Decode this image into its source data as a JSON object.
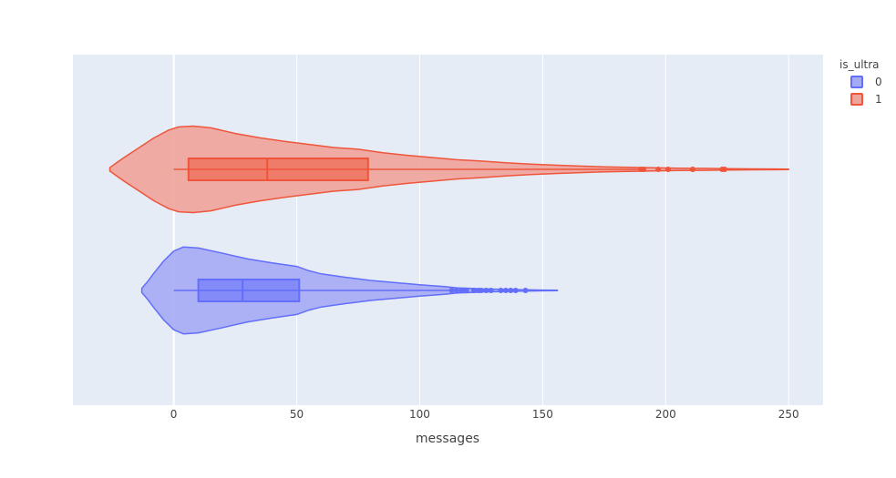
{
  "chart_data": {
    "type": "violin",
    "orientation": "horizontal",
    "xlabel": "messages",
    "xlim": [
      -41,
      264
    ],
    "xticks": [
      0,
      50,
      100,
      150,
      200,
      250
    ],
    "grid": true,
    "legend": {
      "title": "is_ultra",
      "placement": "top-right",
      "entries": [
        "0",
        "1"
      ]
    },
    "series": [
      {
        "name": "0",
        "color": "#636efa",
        "fill": "#a5aaf5",
        "box": {
          "q1": 10,
          "median": 28,
          "q3": 51,
          "whisker_low": 0,
          "whisker_high": 112
        },
        "outliers": [
          113,
          115,
          117,
          119,
          122,
          124,
          125,
          127,
          129,
          133,
          135,
          137,
          139,
          143
        ],
        "density_profile": [
          [
            -13,
            0.05
          ],
          [
            -11,
            0.18
          ],
          [
            -8,
            0.4
          ],
          [
            -4,
            0.68
          ],
          [
            0,
            0.9
          ],
          [
            4,
            0.995
          ],
          [
            10,
            0.97
          ],
          [
            20,
            0.85
          ],
          [
            30,
            0.72
          ],
          [
            40,
            0.63
          ],
          [
            50,
            0.55
          ],
          [
            55,
            0.45
          ],
          [
            60,
            0.38
          ],
          [
            70,
            0.3
          ],
          [
            80,
            0.23
          ],
          [
            90,
            0.18
          ],
          [
            100,
            0.13
          ],
          [
            110,
            0.09
          ],
          [
            115,
            0.06
          ],
          [
            125,
            0.035
          ],
          [
            135,
            0.022
          ],
          [
            145,
            0.012
          ],
          [
            150,
            0.008
          ],
          [
            156,
            0.004
          ]
        ]
      },
      {
        "name": "1",
        "color": "#ef553b",
        "fill": "#f0a39a",
        "box": {
          "q1": 6,
          "median": 38,
          "q3": 79,
          "whisker_low": 0,
          "whisker_high": 189
        },
        "outliers": [
          190,
          191,
          197,
          201,
          211,
          223,
          224
        ],
        "density_profile": [
          [
            -26,
            0.04
          ],
          [
            -24,
            0.12
          ],
          [
            -20,
            0.28
          ],
          [
            -14,
            0.5
          ],
          [
            -8,
            0.72
          ],
          [
            -2,
            0.9
          ],
          [
            2,
            0.97
          ],
          [
            8,
            0.99
          ],
          [
            15,
            0.95
          ],
          [
            25,
            0.82
          ],
          [
            35,
            0.72
          ],
          [
            45,
            0.64
          ],
          [
            55,
            0.57
          ],
          [
            65,
            0.5
          ],
          [
            75,
            0.46
          ],
          [
            85,
            0.38
          ],
          [
            95,
            0.32
          ],
          [
            105,
            0.27
          ],
          [
            115,
            0.22
          ],
          [
            125,
            0.19
          ],
          [
            135,
            0.15
          ],
          [
            145,
            0.12
          ],
          [
            155,
            0.095
          ],
          [
            165,
            0.075
          ],
          [
            175,
            0.058
          ],
          [
            185,
            0.045
          ],
          [
            195,
            0.035
          ],
          [
            205,
            0.028
          ],
          [
            215,
            0.022
          ],
          [
            225,
            0.016
          ],
          [
            235,
            0.011
          ],
          [
            245,
            0.008
          ],
          [
            250,
            0.006
          ]
        ]
      }
    ]
  }
}
